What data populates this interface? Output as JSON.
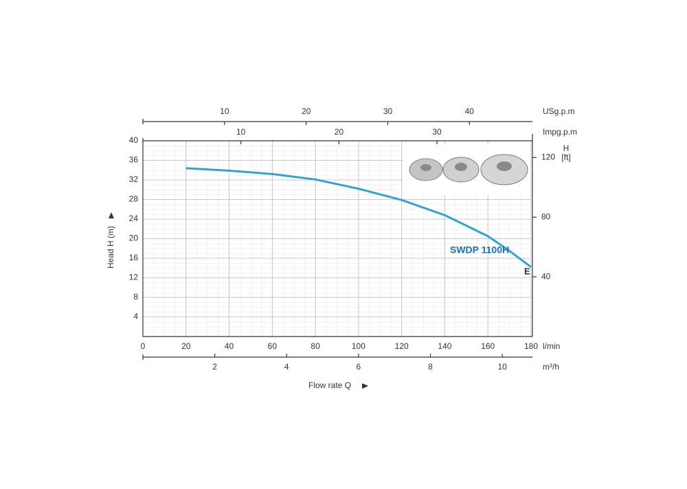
{
  "chart_data": {
    "type": "line",
    "x_label": "Flow rate Q",
    "y_label": "Head H (m)",
    "x_unit": "l/min",
    "xlim": [
      0,
      180
    ],
    "xticks": [
      0,
      20,
      40,
      60,
      80,
      100,
      120,
      140,
      160,
      180
    ],
    "ylim": [
      0,
      40
    ],
    "yticks": [
      4,
      8,
      12,
      16,
      20,
      24,
      28,
      32,
      36,
      40
    ],
    "y2_label": "H",
    "y2_unit": "[ft]",
    "y2lim": [
      0,
      131.2
    ],
    "y2ticks": [
      40,
      80,
      120
    ],
    "extra_x_axes": [
      {
        "unit": "m³/h",
        "xlim": [
          0,
          10.8
        ],
        "xticks": [
          2,
          4,
          6,
          8,
          10
        ]
      },
      {
        "unit": "USg.p.m",
        "xlim": [
          0,
          47.55
        ],
        "xticks": [
          10,
          20,
          30,
          40
        ]
      },
      {
        "unit": "Impg.p.m",
        "xlim": [
          0,
          39.6
        ],
        "xticks": [
          10,
          20,
          30
        ]
      }
    ],
    "grid": true,
    "x": [
      20,
      40,
      60,
      80,
      100,
      120,
      140,
      160,
      170,
      180
    ],
    "series": [
      {
        "name": "SWDP 1100H",
        "color": "#2ea3d6",
        "end_label": "E",
        "values": [
          34.4,
          33.9,
          33.2,
          32.1,
          30.2,
          27.9,
          24.8,
          20.5,
          17.5,
          14.2
        ]
      }
    ]
  }
}
